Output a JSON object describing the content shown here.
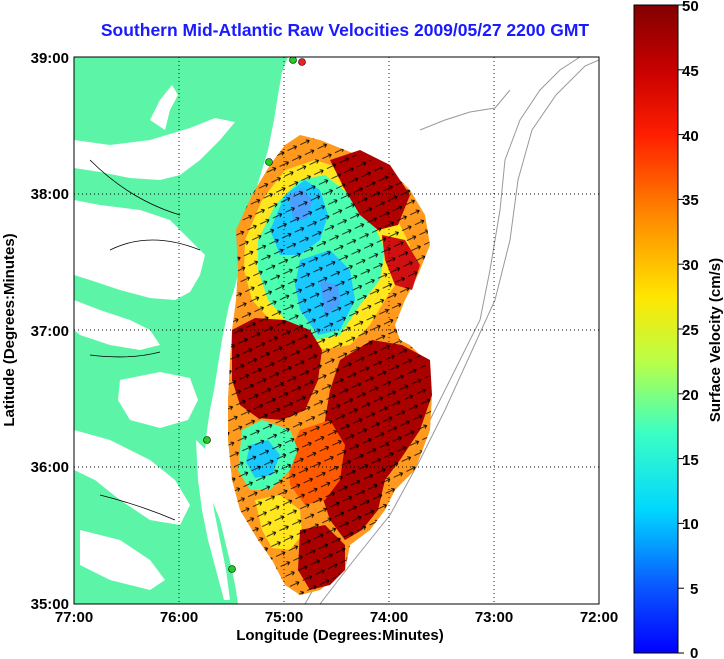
{
  "title": "Southern Mid-Atlantic Raw Velocities 2009/05/27 2200 GMT",
  "x_axis": {
    "label": "Longitude (Degrees:Minutes)",
    "ticks": [
      "77:00",
      "76:00",
      "75:00",
      "74:00",
      "73:00",
      "72:00"
    ]
  },
  "y_axis": {
    "label": "Latitude (Degrees:Minutes)",
    "ticks": [
      "39:00",
      "38:00",
      "37:00",
      "36:00",
      "35:00"
    ]
  },
  "colorbar": {
    "label": "Surface Velocity (cm/s)",
    "ticks": [
      "50",
      "45",
      "40",
      "35",
      "30",
      "25",
      "20",
      "15",
      "10",
      "5",
      "0"
    ]
  },
  "colors": {
    "land": "#5cf5a8",
    "ocean": "#ffffff",
    "title": "#1a1aff",
    "stations": "#22cc22",
    "station_red": "#ee2222"
  }
}
